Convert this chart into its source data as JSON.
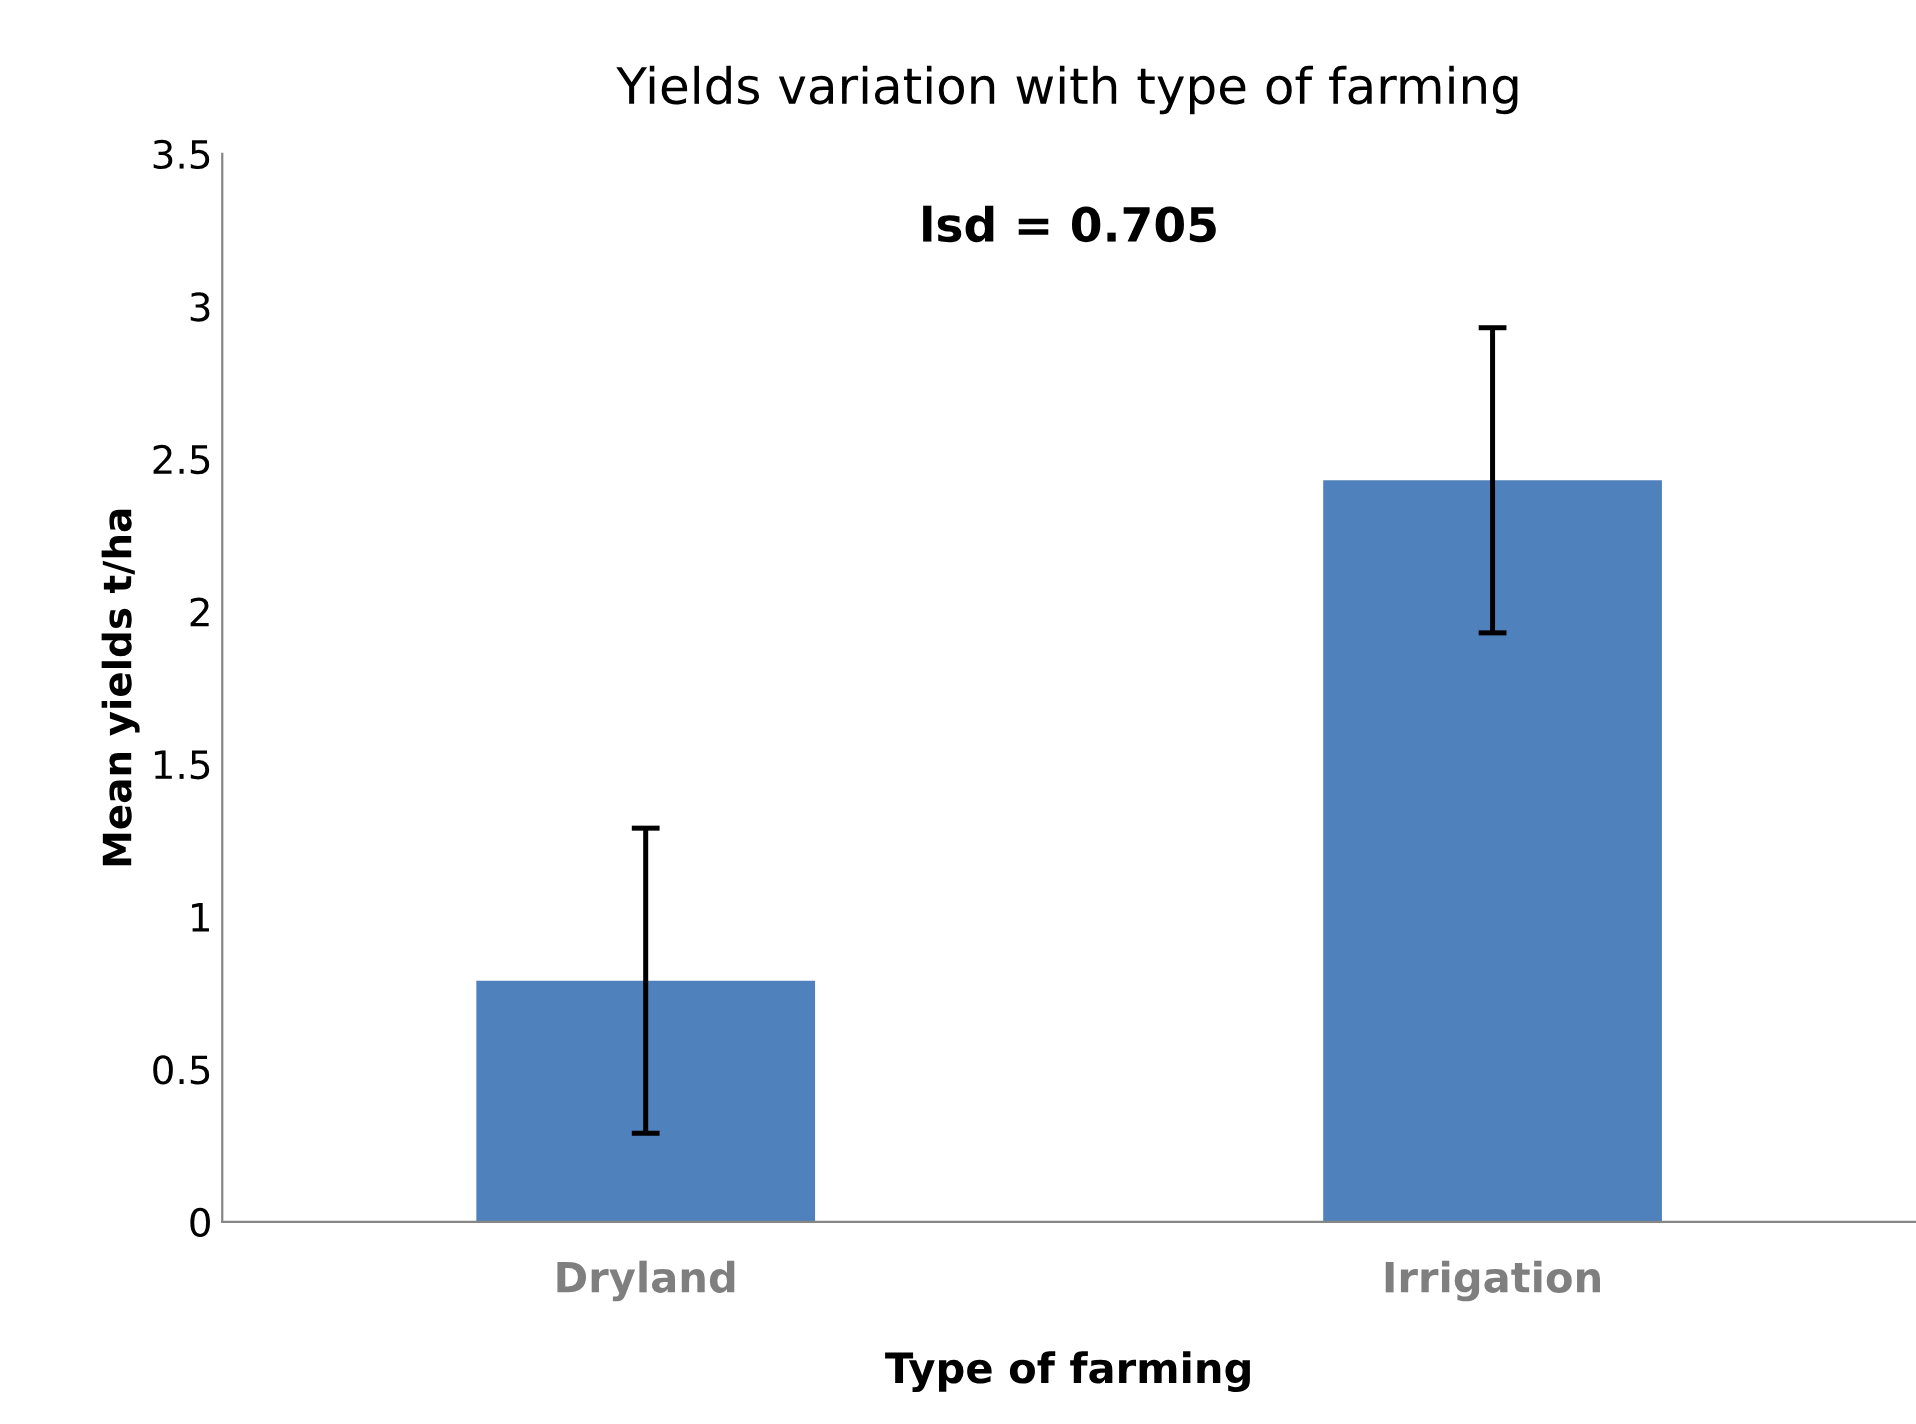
{
  "chart_data": {
    "type": "bar",
    "title": "Yields variation with type of farming",
    "xlabel": "Type of farming",
    "ylabel": "Mean yields t/ha",
    "categories": [
      "Dryland",
      "Irrigation"
    ],
    "values": [
      0.79,
      2.43
    ],
    "errors": [
      0.5,
      0.5
    ],
    "color": "#4f81bd",
    "ylim": [
      0,
      3.5
    ],
    "yticks": [
      0,
      0.5,
      1,
      1.5,
      2,
      2.5,
      3,
      3.5
    ],
    "grid": false,
    "annotations": [
      "lsd = 0.705"
    ]
  }
}
